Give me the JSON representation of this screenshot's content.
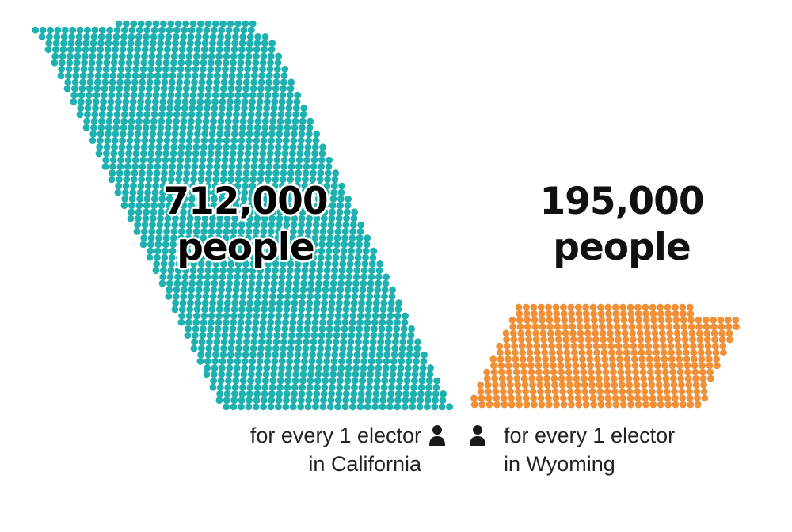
{
  "colors": {
    "california": "#1fb0b0",
    "wyoming": "#f0913a",
    "icon": "#1a1a1a"
  },
  "icons": [
    "person-icon",
    "person-icon"
  ],
  "chart_data": {
    "type": "pictograph",
    "series": [
      {
        "value_label": "712,000",
        "unit_label": "people",
        "caption_line1": "for every 1 elector",
        "caption_line2": "in California",
        "value": 712000,
        "color": "#1fb0b0"
      },
      {
        "value_label": "195,000",
        "unit_label": "people",
        "caption_line1": "for every 1 elector",
        "caption_line2": "in Wyoming",
        "value": 195000,
        "color": "#f0913a"
      }
    ]
  }
}
